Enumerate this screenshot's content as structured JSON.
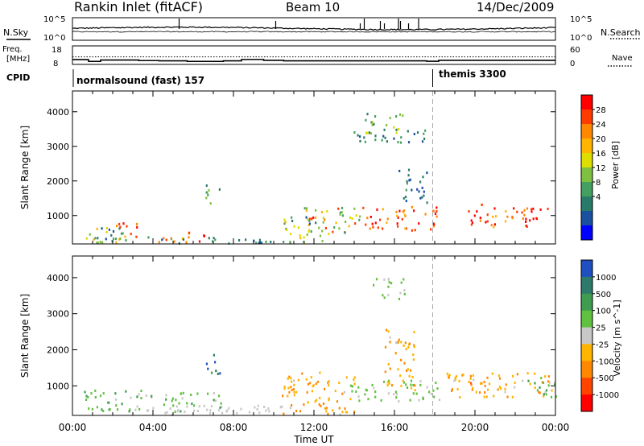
{
  "header": {
    "station": "Rankin Inlet (fitACF)",
    "beam": "Beam 10",
    "date": "14/Dec/2009"
  },
  "top_panel": {
    "left_label": "N.Sky",
    "right_label": "N.Search",
    "left_ticks": [
      "10^5",
      "10^0"
    ],
    "right_ticks": [
      "10^5",
      "10^0"
    ],
    "spikes_ut": [
      5.3,
      10.1,
      14.3,
      14.5,
      15.3,
      15.5,
      16.2,
      16.3,
      16.7,
      17.2
    ]
  },
  "freq_panel": {
    "left_label_1": "Freq.",
    "left_label_2": "[MHz]",
    "right_label": "Nave",
    "left_ticks": [
      "18",
      "8"
    ],
    "right_ticks": [
      "60",
      "0"
    ],
    "freq_steps": [
      {
        "t": 0.0,
        "f": 11.5
      },
      {
        "t": 0.3,
        "f": 11.5
      },
      {
        "t": 0.8,
        "f": 10.2
      },
      {
        "t": 1.4,
        "f": 11.2
      },
      {
        "t": 3.3,
        "f": 10.8
      },
      {
        "t": 4.3,
        "f": 10.6
      },
      {
        "t": 5.7,
        "f": 10.2
      },
      {
        "t": 7.5,
        "f": 10.6
      },
      {
        "t": 8.4,
        "f": 11.6
      },
      {
        "t": 9.5,
        "f": 11.0
      },
      {
        "t": 10.5,
        "f": 10.6
      },
      {
        "t": 16.0,
        "f": 10.6
      },
      {
        "t": 17.6,
        "f": 10.3
      },
      {
        "t": 18.2,
        "f": 11.0
      },
      {
        "t": 24.0,
        "f": 11.0
      }
    ],
    "nave_dotted": 13.5
  },
  "cpid": {
    "label": "CPID",
    "segments": [
      {
        "start": 0.0,
        "name": "normalsound (fast) 157"
      },
      {
        "start": 17.9,
        "name": "themis 3300"
      }
    ]
  },
  "chart_data": [
    {
      "type": "heatmap",
      "panel": "power",
      "ylabel": "Slant Range [km]",
      "yticks": [
        1000,
        2000,
        3000,
        4000
      ],
      "ylim": [
        180,
        4600
      ],
      "xlim": [
        0,
        24
      ],
      "colorbar": {
        "label": "Power [dB]",
        "ticks": [
          "28",
          "24",
          "20",
          "16",
          "12",
          "8",
          "4"
        ],
        "colors": [
          "#ff0000",
          "#ff3b00",
          "#ff8800",
          "#ffb400",
          "#dddd00",
          "#80c040",
          "#44a060",
          "#2a7a6a",
          "#1a50a0",
          "#0000ff"
        ],
        "range": [
          0,
          30
        ]
      },
      "regions": [
        {
          "t": [
            0.2,
            2.5
          ],
          "r": [
            200,
            700
          ],
          "v": [
            4,
            20
          ]
        },
        {
          "t": [
            2.0,
            3.2
          ],
          "r": [
            300,
            850
          ],
          "v": [
            18,
            30
          ]
        },
        {
          "t": [
            4.2,
            6.8
          ],
          "r": [
            180,
            560
          ],
          "v": [
            18,
            30
          ]
        },
        {
          "t": [
            6.6,
            7.4
          ],
          "r": [
            1350,
            1950
          ],
          "v": [
            6,
            16
          ]
        },
        {
          "t": [
            1.0,
            10.0
          ],
          "r": [
            180,
            420
          ],
          "v": [
            4,
            14
          ]
        },
        {
          "t": [
            10.4,
            12.5
          ],
          "r": [
            180,
            1000
          ],
          "v": [
            8,
            20
          ]
        },
        {
          "t": [
            11.5,
            14.5
          ],
          "r": [
            500,
            1300
          ],
          "v": [
            4,
            28
          ]
        },
        {
          "t": [
            14.5,
            18.2
          ],
          "r": [
            600,
            1300
          ],
          "v": [
            20,
            30
          ]
        },
        {
          "t": [
            14.5,
            16.5
          ],
          "r": [
            3400,
            4000
          ],
          "v": [
            8,
            18
          ]
        },
        {
          "t": [
            13.8,
            17.5
          ],
          "r": [
            3100,
            3500
          ],
          "v": [
            4,
            12
          ]
        },
        {
          "t": [
            19.5,
            23.6
          ],
          "r": [
            700,
            1350
          ],
          "v": [
            18,
            30
          ]
        },
        {
          "t": [
            16.2,
            17.6
          ],
          "r": [
            1400,
            2400
          ],
          "v": [
            4,
            10
          ]
        }
      ]
    },
    {
      "type": "heatmap",
      "panel": "velocity",
      "ylabel": "Slant Range [km]",
      "yticks": [
        1000,
        2000,
        3000,
        4000
      ],
      "ylim": [
        180,
        4600
      ],
      "xlim": [
        0,
        24
      ],
      "colorbar": {
        "label": "Velocity [m s^-1]",
        "ticks": [
          "1000",
          "500",
          "100",
          "25",
          "-25",
          "-100",
          "-500",
          "-1000"
        ],
        "colors": [
          "#2050c0",
          "#2e7a6a",
          "#3f9c50",
          "#60c040",
          "#c8c8c8",
          "#ffb400",
          "#ff8800",
          "#ff4400",
          "#ff0000"
        ],
        "range": [
          -1200,
          1200
        ]
      },
      "regions": [
        {
          "t": [
            0.5,
            4.0
          ],
          "r": [
            300,
            900
          ],
          "v": [
            80,
            500
          ]
        },
        {
          "t": [
            4.5,
            7.5
          ],
          "r": [
            250,
            850
          ],
          "v": [
            80,
            500
          ]
        },
        {
          "t": [
            6.6,
            7.4
          ],
          "r": [
            1350,
            1950
          ],
          "v": [
            500,
            1200
          ]
        },
        {
          "t": [
            3.0,
            11.0
          ],
          "r": [
            180,
            500
          ],
          "v": [
            -40,
            40
          ]
        },
        {
          "t": [
            10.4,
            14.0
          ],
          "r": [
            200,
            1400
          ],
          "v": [
            -600,
            -120
          ]
        },
        {
          "t": [
            13.5,
            18.2
          ],
          "r": [
            600,
            1200
          ],
          "v": [
            60,
            400
          ]
        },
        {
          "t": [
            15.5,
            17.0
          ],
          "r": [
            900,
            2600
          ],
          "v": [
            -600,
            -120
          ]
        },
        {
          "t": [
            14.8,
            16.5
          ],
          "r": [
            3400,
            4000
          ],
          "v": [
            60,
            300
          ]
        },
        {
          "t": [
            18.5,
            23.8
          ],
          "r": [
            650,
            1400
          ],
          "v": [
            -700,
            -100
          ]
        },
        {
          "t": [
            22.5,
            24.0
          ],
          "r": [
            700,
            1300
          ],
          "v": [
            100,
            500
          ]
        }
      ]
    }
  ],
  "xaxis": {
    "label": "Time UT",
    "ticks": [
      "00:00",
      "04:00",
      "08:00",
      "12:00",
      "16:00",
      "20:00",
      "00:00"
    ]
  },
  "cpid_change_ut": 17.9
}
